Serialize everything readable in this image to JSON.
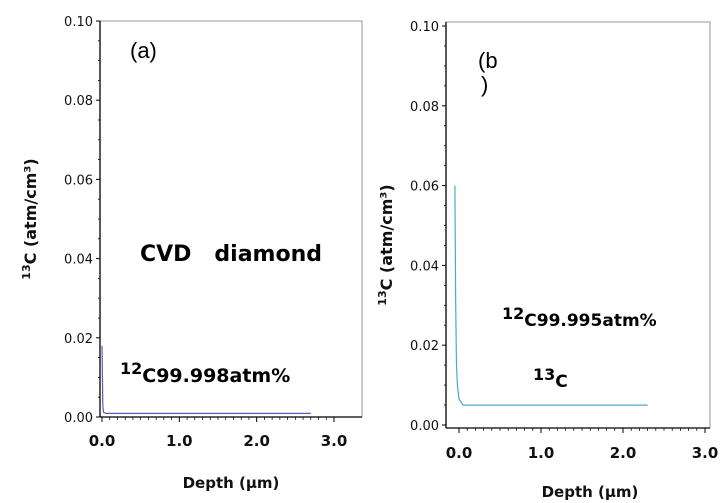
{
  "chart_data": [
    {
      "type": "line",
      "panel_label": "(a)",
      "ylabel_sup": "13",
      "ylabel_text": "C (atm/cm³)",
      "xlabel": "Depth (µm)",
      "xlim": [
        0.0,
        3.0
      ],
      "ylim": [
        0.0,
        0.1
      ],
      "x_ticks": [
        "0.0",
        "1.0",
        "2.0",
        "3.0"
      ],
      "y_ticks": [
        "0.00",
        "0.02",
        "0.04",
        "0.06",
        "0.08",
        "0.10"
      ],
      "annotations": {
        "material": "CVD   diamond",
        "purity_sup": "12",
        "purity_text": "C99.998atm%"
      },
      "series": [
        {
          "color": "#5b5bb8",
          "x": [
            0.0,
            0.01,
            0.02,
            0.05,
            0.3,
            1.0,
            2.0,
            2.7
          ],
          "y": [
            0.018,
            0.003,
            0.0012,
            0.0009,
            0.0009,
            0.0009,
            0.0009,
            0.0009
          ]
        }
      ]
    },
    {
      "type": "line",
      "panel_label_top": "(b",
      "panel_label_bottom": ")",
      "ylabel_sup": "13",
      "ylabel_text": "C (atm/cm³)",
      "xlabel": "Depth (µm)",
      "xlim": [
        0.0,
        3.0
      ],
      "ylim": [
        0.0,
        0.1
      ],
      "x_ticks": [
        "0.0",
        "1.0",
        "2.0",
        "3.0"
      ],
      "y_ticks": [
        "0.00",
        "0.02",
        "0.04",
        "0.06",
        "0.08",
        "0.10"
      ],
      "annotations": {
        "purity_sup": "12",
        "purity_text": "C99.995atm%",
        "series_sup": "13",
        "series_text": "C"
      },
      "series": [
        {
          "color": "#4fa7cf",
          "x": [
            -0.05,
            -0.04,
            -0.03,
            -0.02,
            0.0,
            0.05,
            0.2,
            1.0,
            2.0,
            2.3
          ],
          "y": [
            0.06,
            0.03,
            0.015,
            0.01,
            0.0065,
            0.005,
            0.005,
            0.005,
            0.005,
            0.005
          ]
        }
      ]
    }
  ]
}
